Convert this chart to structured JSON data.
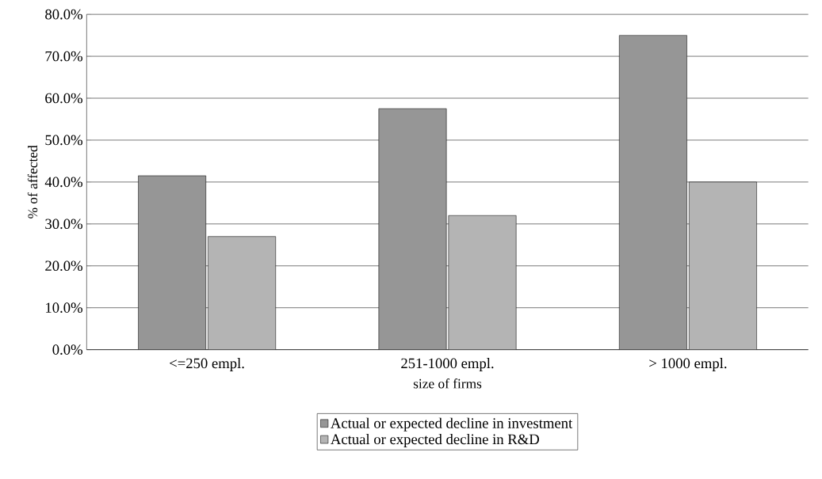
{
  "chart_data": {
    "type": "bar",
    "xlabel": "size of firms",
    "ylabel": "% of affected",
    "categories": [
      "<=250 empl.",
      "251-1000 empl.",
      "> 1000 empl."
    ],
    "series": [
      {
        "name": "Actual or expected decline in investment",
        "color": "#969696",
        "values": [
          41.5,
          57.5,
          75
        ]
      },
      {
        "name": "Actual or expected decline in R&D",
        "color": "#b4b4b4",
        "values": [
          27,
          32,
          40
        ]
      }
    ],
    "ylim": [
      0,
      80
    ],
    "yticks": [
      {
        "value": 0,
        "label": "0.0%"
      },
      {
        "value": 10,
        "label": "10.0%"
      },
      {
        "value": 20,
        "label": "20.0%"
      },
      {
        "value": 30,
        "label": "30.0%"
      },
      {
        "value": 40,
        "label": "40.0%"
      },
      {
        "value": 50,
        "label": "50.0%"
      },
      {
        "value": 60,
        "label": "60.0%"
      },
      {
        "value": 70,
        "label": "70.0%"
      },
      {
        "value": 80,
        "label": "80.0%"
      }
    ],
    "grid": "y",
    "legend": "bottom"
  }
}
